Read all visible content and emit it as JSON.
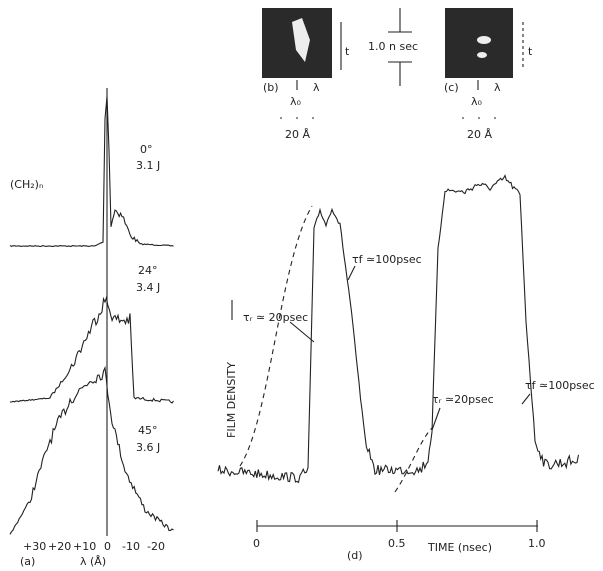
{
  "panel_a": {
    "label": "(a)",
    "sample": "(CH₂)ₙ",
    "traces": [
      {
        "angle": "0°",
        "energy": "3.1 J"
      },
      {
        "angle": "24°",
        "energy": "3.4 J"
      },
      {
        "angle": "45°",
        "energy": "3.6 J"
      }
    ],
    "x_ticks": [
      "+30",
      "+20",
      "+10",
      "0",
      "-10",
      "-20"
    ],
    "x_label": "λ (Å)"
  },
  "panel_b": {
    "label": "(b)",
    "wavelength": "λ₀",
    "lambda_axis": "λ",
    "time_axis": "t",
    "width": "20 Å"
  },
  "panel_c": {
    "label": "(c)",
    "wavelength": "λ₀",
    "lambda_axis": "λ",
    "time_axis": "t",
    "width": "20 Å"
  },
  "pulse_duration": "1.0 n sec",
  "panel_d": {
    "label": "(d)",
    "y_label": "FILM DENSITY",
    "x_label": "TIME (nsec)",
    "x_ticks": [
      "0",
      "0.5",
      "1.0"
    ],
    "annotations": [
      "τf ≃100psec",
      "τᵣ ≃ 20psec",
      "τᵣ ≃20psec",
      "τf ≃100psec"
    ]
  }
}
